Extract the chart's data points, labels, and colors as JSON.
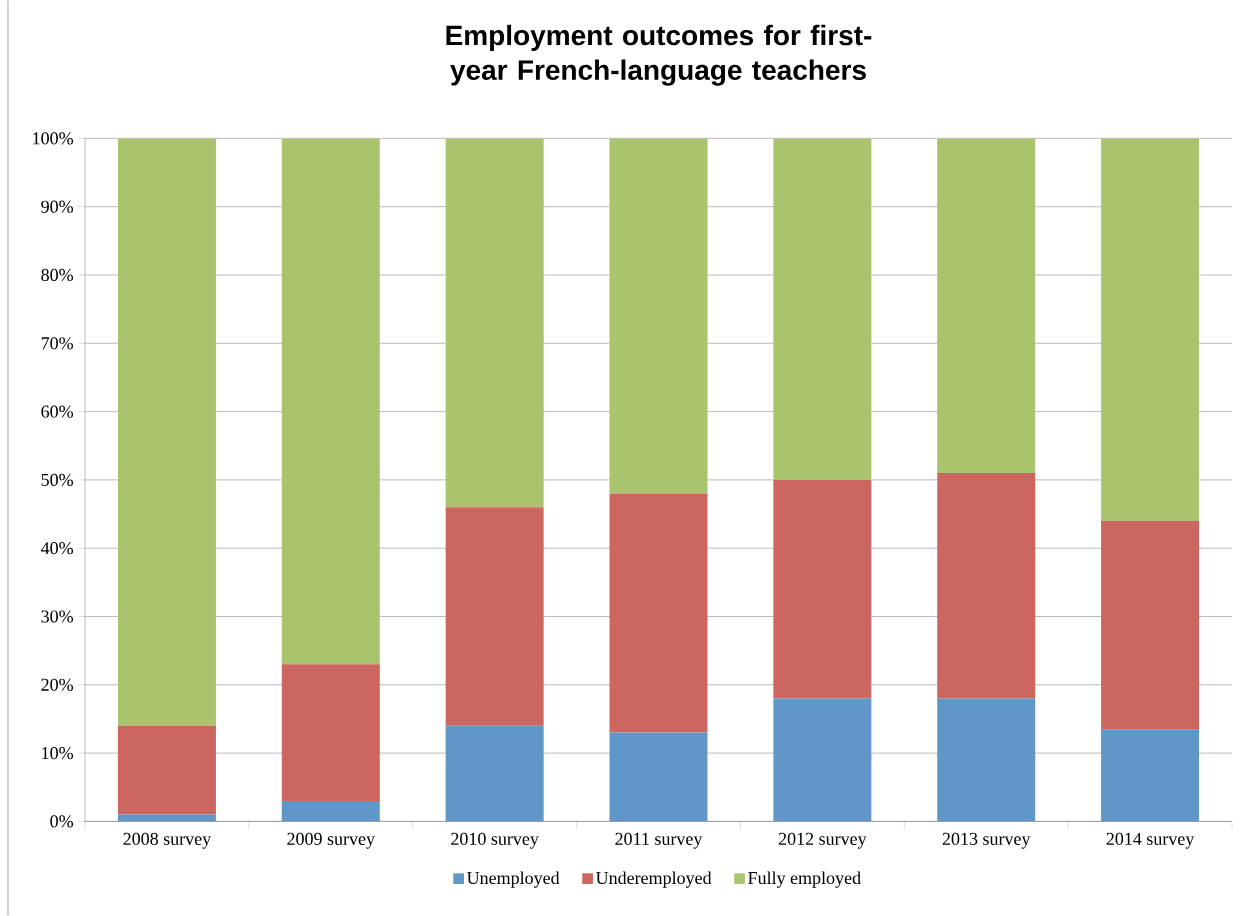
{
  "chart_data": {
    "type": "bar",
    "title": "Employment outcomes for first-year French-language teachers",
    "categories": [
      "2008 survey",
      "2009 survey",
      "2010 survey",
      "2011 survey",
      "2012 survey",
      "2013 survey",
      "2014 survey"
    ],
    "stacked": true,
    "series": [
      {
        "name": "Unemployed",
        "color": "#6196c8",
        "values": [
          1,
          3,
          14,
          13,
          18,
          18,
          13.5
        ]
      },
      {
        "name": "Underemployed",
        "color": "#cc6660",
        "values": [
          13,
          20,
          32,
          35,
          32,
          33,
          30.5
        ]
      },
      {
        "name": "Fully employed",
        "color": "#a9c46c",
        "values": [
          86,
          77,
          54,
          52,
          50,
          49,
          56
        ]
      }
    ],
    "ylim": [
      0,
      100
    ],
    "yticks": [
      {
        "value": 0,
        "label": "0%"
      },
      {
        "value": 10,
        "label": "10%"
      },
      {
        "value": 20,
        "label": "20%"
      },
      {
        "value": 30,
        "label": "30%"
      },
      {
        "value": 40,
        "label": "40%"
      },
      {
        "value": 50,
        "label": "50%"
      },
      {
        "value": 60,
        "label": "60%"
      },
      {
        "value": 70,
        "label": "70%"
      },
      {
        "value": 80,
        "label": "80%"
      },
      {
        "value": 90,
        "label": "90%"
      },
      {
        "value": 100,
        "label": "100%"
      }
    ],
    "grid": "y",
    "legend": "bottom"
  }
}
